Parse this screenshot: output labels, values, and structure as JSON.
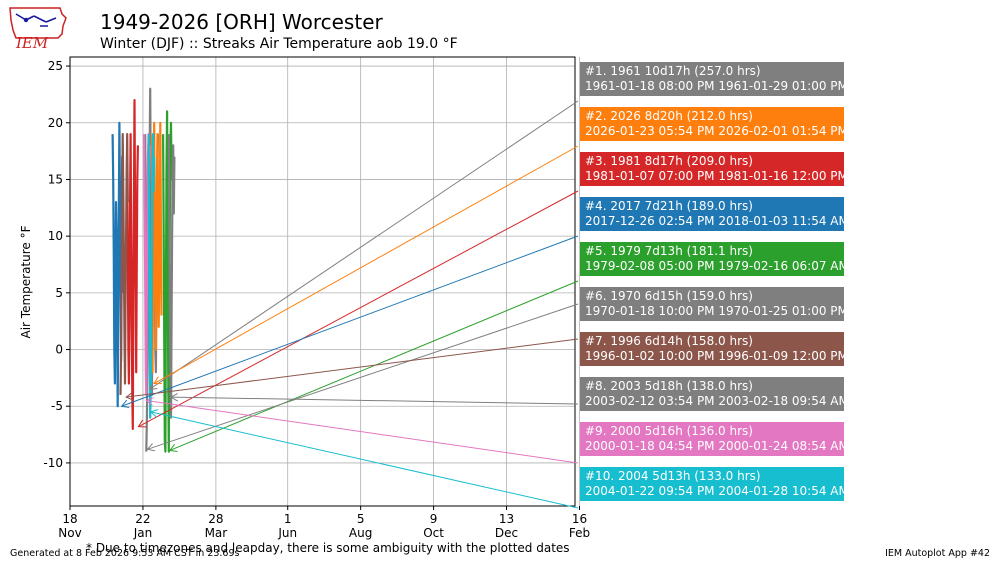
{
  "header": {
    "title": "1949-2026 [ORH] Worcester",
    "subtitle": "Winter (DJF) :: Streaks Air Temperature aob 19.0 °F",
    "logo_text": "IEM"
  },
  "chart_data": {
    "type": "line",
    "title": "1949-2026 [ORH] Worcester",
    "subtitle": "Winter (DJF) :: Streaks Air Temperature aob 19.0 °F",
    "xlabel": "",
    "ylabel": "Air Temperature °F",
    "ylim": [
      -13.8,
      25.8
    ],
    "yticks": [
      -10,
      -5,
      0,
      5,
      10,
      15,
      20,
      25
    ],
    "xlim_days": [
      0,
      450
    ],
    "xticks": [
      {
        "day": 0,
        "l1": "18",
        "l2": "Nov"
      },
      {
        "day": 65,
        "l1": "22",
        "l2": "Jan"
      },
      {
        "day": 130,
        "l1": "28",
        "l2": "Mar"
      },
      {
        "day": 194,
        "l1": "1",
        "l2": "Jun"
      },
      {
        "day": 259,
        "l1": "5",
        "l2": "Aug"
      },
      {
        "day": 324,
        "l1": "9",
        "l2": "Oct"
      },
      {
        "day": 389,
        "l1": "13",
        "l2": "Dec"
      },
      {
        "day": 454,
        "l1": "16",
        "l2": "Feb"
      }
    ],
    "grid": true,
    "series": [
      {
        "rank": 1,
        "color": "#7f7f7f",
        "label": "#1. 1961 10d17h (257.0 hrs)",
        "range": "1961-01-18 08:00 PM 1961-01-29 01:00 PM",
        "x": [
          67.0,
          67.5,
          68.0,
          68.5,
          69.0,
          69.5,
          70.0,
          70.5,
          71.0,
          71.5,
          72.0,
          72.5,
          73.0,
          73.5,
          74.0,
          74.5,
          75.0,
          75.5,
          76.0,
          76.5,
          77.0,
          77.5,
          78.0,
          78.5
        ],
        "y": [
          19,
          12,
          6,
          2,
          -2,
          4,
          10,
          15,
          18,
          23,
          14,
          8,
          -4,
          3,
          12,
          19,
          16,
          9,
          0,
          -2,
          5,
          12,
          17,
          19
        ],
        "arrow_tip": {
          "day": 71.0,
          "temp": -3.5
        }
      },
      {
        "rank": 2,
        "color": "#ff7f0e",
        "label": "#2. 2026 8d20h (212.0 hrs)",
        "range": "2026-01-23 05:54 PM 2026-02-01 01:54 PM",
        "x": [
          72.0,
          72.5,
          73.0,
          73.5,
          74.0,
          74.5,
          75.0,
          75.5,
          76.0,
          76.5,
          77.0,
          77.5,
          78.0,
          78.5,
          79.0,
          79.5,
          80.0,
          80.5,
          81.0,
          81.5
        ],
        "y": [
          19,
          10,
          3,
          -2,
          5,
          14,
          20,
          12,
          4,
          0,
          8,
          16,
          19,
          9,
          2,
          6,
          13,
          20,
          11,
          3
        ],
        "arrow_tip": {
          "day": 75.0,
          "temp": -3.0
        }
      },
      {
        "rank": 3,
        "color": "#d62728",
        "label": "#3. 1981 8d17h (209.0 hrs)",
        "range": "1981-01-07 07:00 PM 1981-01-16 12:00 PM",
        "x": [
          51.0,
          51.5,
          52.0,
          52.5,
          53.0,
          53.5,
          54.0,
          54.5,
          55.0,
          55.5,
          56.0,
          56.5,
          57.0,
          57.5,
          58.0,
          58.5,
          59.0,
          59.5,
          60.0,
          60.5
        ],
        "y": [
          17,
          8,
          0,
          -3,
          4,
          12,
          19,
          10,
          2,
          -4,
          -7,
          6,
          14,
          22,
          12,
          5,
          -2,
          8,
          15,
          18
        ],
        "arrow_tip": {
          "day": 61.0,
          "temp": -6.8
        }
      },
      {
        "rank": 4,
        "color": "#1f77b4",
        "label": "#4. 2017 7d21h (189.0 hrs)",
        "range": "2017-12-26 02:54 PM 2018-01-03 11:54 AM",
        "x": [
          38.0,
          38.5,
          39.0,
          39.5,
          40.0,
          40.5,
          41.0,
          41.5,
          42.0,
          42.5,
          43.0,
          43.5,
          44.0,
          44.5,
          45.0,
          45.5,
          46.0,
          46.5,
          47.0,
          47.5
        ],
        "y": [
          19,
          15,
          8,
          0,
          -3,
          6,
          13,
          10,
          2,
          -5,
          4,
          12,
          20,
          14,
          6,
          -1,
          9,
          17,
          12,
          5
        ],
        "arrow_tip": {
          "day": 46.0,
          "temp": -5.0
        }
      },
      {
        "rank": 5,
        "color": "#2ca02c",
        "label": "#5. 1979 7d13h (181.1 hrs)",
        "range": "1979-02-08 05:00 PM 1979-02-16 06:07 AM",
        "x": [
          83.0,
          83.5,
          84.0,
          84.5,
          85.0,
          85.5,
          86.0,
          86.5,
          87.0,
          87.5,
          88.0,
          88.5,
          89.0,
          89.5,
          90.0,
          90.5,
          91.0
        ],
        "y": [
          19,
          10,
          0,
          -8,
          -9,
          5,
          16,
          21,
          10,
          -2,
          -9,
          3,
          12,
          18,
          20,
          15,
          17
        ],
        "arrow_tip": {
          "day": 89.0,
          "temp": -8.9
        }
      },
      {
        "rank": 6,
        "color": "#7f7f7f",
        "label": "#6. 1970 6d15h (159.0 hrs)",
        "range": "1970-01-18 10:00 PM 1970-01-25 01:00 PM",
        "x": [
          68.0,
          68.5,
          69.0,
          69.5,
          70.0,
          70.5,
          71.0,
          71.5,
          72.0,
          72.5,
          73.0,
          73.5,
          74.0,
          74.5
        ],
        "y": [
          -9,
          -6,
          -2,
          3,
          10,
          16,
          19,
          12,
          5,
          0,
          6,
          13,
          18,
          19
        ],
        "arrow_tip": {
          "day": 69.0,
          "temp": -8.8
        }
      },
      {
        "rank": 7,
        "color": "#8c564b",
        "label": "#7. 1996 6d14h (158.0 hrs)",
        "range": "1996-01-02 10:00 PM 1996-01-09 12:00 PM",
        "x": [
          45.0,
          45.5,
          46.0,
          46.5,
          47.0,
          47.5,
          48.0,
          48.5,
          49.0,
          49.5,
          50.0,
          50.5,
          51.0,
          51.5
        ],
        "y": [
          -4,
          0,
          5,
          12,
          19,
          14,
          8,
          2,
          -3,
          4,
          10,
          16,
          19,
          13
        ],
        "arrow_tip": {
          "day": 50.0,
          "temp": -4.2
        }
      },
      {
        "rank": 8,
        "color": "#7f7f7f",
        "label": "#8. 2003 5d18h (138.0 hrs)",
        "range": "2003-02-12 03:54 PM 2003-02-18 09:54 AM",
        "x": [
          88.0,
          88.5,
          89.0,
          89.5,
          90.0,
          90.5,
          91.0,
          91.5,
          92.0,
          92.5,
          93.0
        ],
        "y": [
          19,
          12,
          4,
          -2,
          -6,
          3,
          10,
          16,
          18,
          12,
          17
        ],
        "arrow_tip": {
          "day": 90.0,
          "temp": -4.2
        }
      },
      {
        "rank": 9,
        "color": "#e377c2",
        "label": "#9. 2000 5d16h (136.0 hrs)",
        "range": "2000-01-18 04:54 PM 2000-01-24 08:54 AM",
        "x": [
          66.0,
          66.5,
          67.0,
          67.5,
          68.0,
          68.5,
          69.0,
          69.5,
          70.0,
          70.5,
          71.0
        ],
        "y": [
          19,
          13,
          6,
          -2,
          -4,
          5,
          12,
          17,
          19,
          15,
          18
        ],
        "arrow_tip": {
          "day": 68.0,
          "temp": -4.5
        }
      },
      {
        "rank": 10,
        "color": "#17becf",
        "label": "#10. 2004 5d13h (133.0 hrs)",
        "range": "2004-01-22 09:54 PM 2004-01-28 10:54 AM",
        "x": [
          70.0,
          70.5,
          71.0,
          71.5,
          72.0,
          72.5,
          73.0,
          73.5,
          74.0,
          74.5,
          75.0
        ],
        "y": [
          19,
          10,
          2,
          -6,
          -3,
          4,
          11,
          16,
          19,
          14,
          17
        ],
        "arrow_tip": {
          "day": 72.0,
          "temp": -5.5
        }
      }
    ]
  },
  "footer": {
    "left": "Generated at 8 Feb 2026 9:53 AM CST in 23.69s",
    "note": "* Due to timezones and leapday, there is some ambiguity with the plotted dates",
    "right": "IEM Autoplot App #42"
  }
}
